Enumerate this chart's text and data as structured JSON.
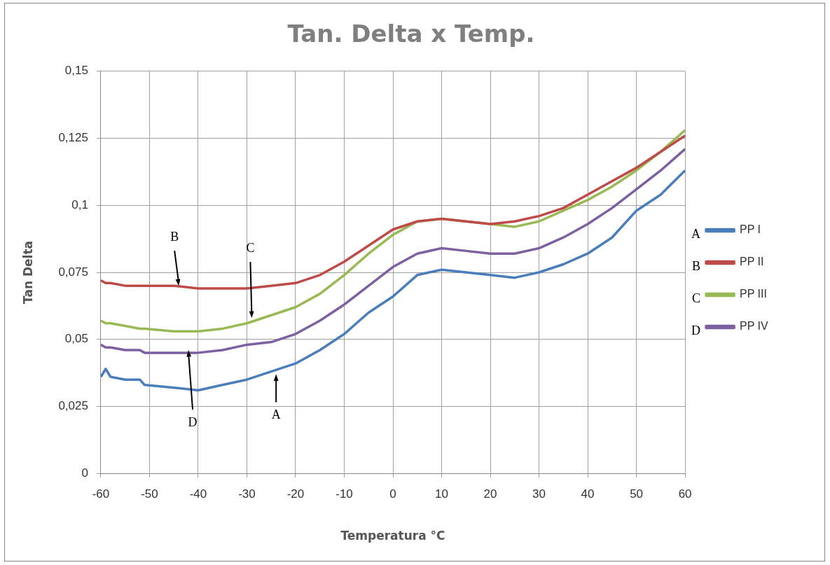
{
  "chart_data": {
    "type": "line",
    "title": "Tan. Delta x Temp.",
    "xlabel": "Temperatura °C",
    "ylabel": "Tan Delta",
    "x": [
      -60,
      -59,
      -58,
      -55,
      -52,
      -51,
      -45,
      -40,
      -35,
      -30,
      -25,
      -20,
      -15,
      -10,
      -5,
      0,
      5,
      10,
      15,
      20,
      25,
      30,
      35,
      40,
      45,
      50,
      55,
      60
    ],
    "series": [
      {
        "name": "PP I",
        "color": "#4a7ebb",
        "values": [
          0.036,
          0.039,
          0.036,
          0.035,
          0.035,
          0.033,
          0.032,
          0.031,
          0.033,
          0.035,
          0.038,
          0.041,
          0.046,
          0.052,
          0.06,
          0.066,
          0.074,
          0.076,
          0.075,
          0.074,
          0.073,
          0.075,
          0.078,
          0.082,
          0.088,
          0.098,
          0.104,
          0.113
        ]
      },
      {
        "name": "PP II",
        "color": "#be4b48",
        "values": [
          0.072,
          0.071,
          0.071,
          0.07,
          0.07,
          0.07,
          0.07,
          0.069,
          0.069,
          0.069,
          0.07,
          0.071,
          0.074,
          0.079,
          0.085,
          0.091,
          0.094,
          0.095,
          0.094,
          0.093,
          0.094,
          0.096,
          0.099,
          0.104,
          0.109,
          0.114,
          0.12,
          0.126
        ]
      },
      {
        "name": "PP III",
        "color": "#98b954",
        "values": [
          0.057,
          0.056,
          0.056,
          0.055,
          0.054,
          0.054,
          0.053,
          0.053,
          0.054,
          0.056,
          0.059,
          0.062,
          0.067,
          0.074,
          0.082,
          0.089,
          0.094,
          0.095,
          0.094,
          0.093,
          0.092,
          0.094,
          0.098,
          0.102,
          0.107,
          0.113,
          0.12,
          0.128
        ]
      },
      {
        "name": "PP IV",
        "color": "#7d60a0",
        "values": [
          0.048,
          0.047,
          0.047,
          0.046,
          0.046,
          0.045,
          0.045,
          0.045,
          0.046,
          0.048,
          0.049,
          0.052,
          0.057,
          0.063,
          0.07,
          0.077,
          0.082,
          0.084,
          0.083,
          0.082,
          0.082,
          0.084,
          0.088,
          0.093,
          0.099,
          0.106,
          0.113,
          0.121
        ]
      }
    ],
    "xlim": [
      -60,
      60
    ],
    "xticks": [
      -60,
      -50,
      -40,
      -30,
      -20,
      -10,
      0,
      10,
      20,
      30,
      40,
      50,
      60
    ],
    "ylim": [
      0,
      0.15
    ],
    "yticks": [
      {
        "value": 0,
        "label": "0"
      },
      {
        "value": 0.025,
        "label": "0,025"
      },
      {
        "value": 0.05,
        "label": "0,05"
      },
      {
        "value": 0.075,
        "label": "0,075"
      },
      {
        "value": 0.1,
        "label": "0,1"
      },
      {
        "value": 0.125,
        "label": "0,125"
      },
      {
        "value": 0.15,
        "label": "0,15"
      }
    ],
    "grid": true,
    "legend": "right",
    "marker": "none",
    "line_style": "solid",
    "annotations": [
      {
        "text": "A",
        "x": -24,
        "y": 0.037
      },
      {
        "text": "B",
        "x": -44,
        "y": 0.07
      },
      {
        "text": "C",
        "x": -29,
        "y": 0.058
      },
      {
        "text": "D",
        "x": -42,
        "y": 0.046
      },
      "A",
      "B",
      "C",
      "D"
    ]
  }
}
